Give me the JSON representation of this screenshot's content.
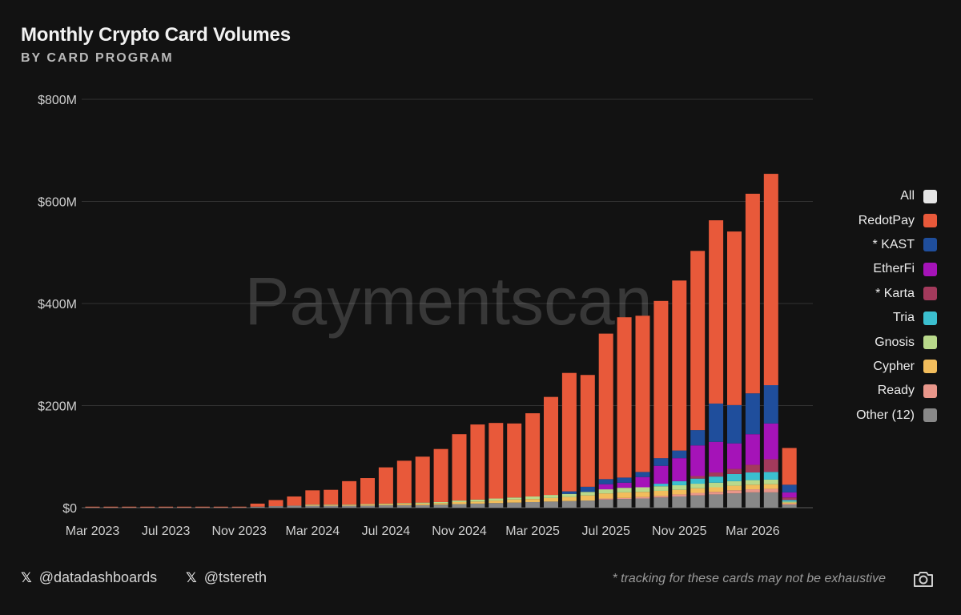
{
  "header": {
    "title": "Monthly Crypto Card Volumes",
    "subtitle": "BY CARD PROGRAM"
  },
  "watermark": "Paymentscan",
  "legend": [
    {
      "label": "All",
      "color": "#e6e6e6"
    },
    {
      "label": "RedotPay",
      "color": "#e8593a"
    },
    {
      "label": "* KAST",
      "color": "#1f4e9c"
    },
    {
      "label": "EtherFi",
      "color": "#a513b8"
    },
    {
      "label": "* Karta",
      "color": "#a33a5c"
    },
    {
      "label": "Tria",
      "color": "#3bbfcf"
    },
    {
      "label": "Gnosis",
      "color": "#b9d98b"
    },
    {
      "label": "Cypher",
      "color": "#f2bd5c"
    },
    {
      "label": "Ready",
      "color": "#e8968a"
    },
    {
      "label": "Other (12)",
      "color": "#888888"
    }
  ],
  "footer": {
    "handle1": "@datadashboards",
    "handle2": "@tstereth",
    "x_icon": "𝕏",
    "footnote": "* tracking for these cards may not be exhaustive",
    "camera_icon": "camera-icon"
  },
  "chart_data": {
    "type": "bar",
    "stacked": true,
    "title": "Monthly Crypto Card Volumes",
    "subtitle": "BY CARD PROGRAM",
    "ylim": [
      0,
      800
    ],
    "y_unit": "$M",
    "y_ticks": [
      {
        "value": 0,
        "label": "$0"
      },
      {
        "value": 200,
        "label": "$200M"
      },
      {
        "value": 400,
        "label": "$400M"
      },
      {
        "value": 600,
        "label": "$600M"
      },
      {
        "value": 800,
        "label": "$800M"
      }
    ],
    "x_tick_labels": [
      {
        "category": "2023-03",
        "label": "Mar 2023"
      },
      {
        "category": "2023-07",
        "label": "Jul 2023"
      },
      {
        "category": "2023-11",
        "label": "Nov 2023"
      },
      {
        "category": "2024-03",
        "label": "Mar 2024"
      },
      {
        "category": "2024-07",
        "label": "Jul 2024"
      },
      {
        "category": "2024-11",
        "label": "Nov 2024"
      },
      {
        "category": "2025-03",
        "label": "Mar 2025"
      },
      {
        "category": "2025-07",
        "label": "Jul 2025"
      },
      {
        "category": "2025-11",
        "label": "Nov 2025"
      },
      {
        "category": "2026-03",
        "label": "Mar 2026"
      }
    ],
    "grid": true,
    "legend_position": "right",
    "categories": [
      "2023-03",
      "2023-04",
      "2023-05",
      "2023-06",
      "2023-07",
      "2023-08",
      "2023-09",
      "2023-10",
      "2023-11",
      "2023-12",
      "2024-01",
      "2024-02",
      "2024-03",
      "2024-04",
      "2024-05",
      "2024-06",
      "2024-07",
      "2024-08",
      "2024-09",
      "2024-10",
      "2024-11",
      "2024-12",
      "2025-01",
      "2025-02",
      "2025-03",
      "2025-04",
      "2025-05",
      "2025-06",
      "2025-07",
      "2025-08",
      "2025-09",
      "2025-10",
      "2025-11",
      "2025-12",
      "2026-01",
      "2026-02",
      "2026-03",
      "2026-04",
      "2026-05"
    ],
    "series": [
      {
        "name": "Other (12)",
        "color": "#888888",
        "values": [
          1,
          1,
          1,
          1,
          1,
          1,
          1,
          1,
          1,
          2,
          3,
          4,
          4,
          4,
          4,
          4,
          5,
          5,
          5,
          6,
          7,
          8,
          9,
          10,
          11,
          12,
          13,
          14,
          16,
          17,
          18,
          20,
          22,
          24,
          26,
          28,
          30,
          30,
          6
        ]
      },
      {
        "name": "Ready",
        "color": "#e8968a",
        "values": [
          0,
          0,
          0,
          0,
          0,
          0,
          0,
          0,
          0,
          0,
          0,
          0,
          0,
          0,
          0,
          0,
          0,
          0,
          0,
          0,
          0,
          0,
          0,
          0,
          0,
          0,
          0,
          0,
          2,
          2,
          3,
          3,
          4,
          5,
          5,
          6,
          6,
          7,
          2
        ]
      },
      {
        "name": "Cypher",
        "color": "#f2bd5c",
        "values": [
          0,
          0,
          0,
          0,
          0,
          0,
          0,
          0,
          0,
          0,
          0,
          0,
          1,
          1,
          1,
          2,
          2,
          3,
          3,
          3,
          4,
          4,
          5,
          6,
          6,
          7,
          8,
          10,
          10,
          11,
          10,
          10,
          9,
          9,
          9,
          9,
          9,
          9,
          2
        ]
      },
      {
        "name": "Gnosis",
        "color": "#b9d98b",
        "values": [
          0,
          0,
          0,
          0,
          0,
          0,
          0,
          0,
          0,
          0,
          0,
          0,
          1,
          1,
          1,
          1,
          1,
          1,
          2,
          2,
          3,
          4,
          4,
          4,
          5,
          6,
          6,
          7,
          8,
          9,
          9,
          9,
          9,
          9,
          9,
          9,
          9,
          9,
          2
        ]
      },
      {
        "name": "Tria",
        "color": "#3bbfcf",
        "values": [
          0,
          0,
          0,
          0,
          0,
          0,
          0,
          0,
          0,
          0,
          0,
          0,
          0,
          0,
          0,
          0,
          0,
          0,
          0,
          0,
          0,
          0,
          0,
          0,
          0,
          0,
          0,
          0,
          0,
          0,
          0,
          5,
          8,
          10,
          12,
          14,
          15,
          15,
          3
        ]
      },
      {
        "name": "* Karta",
        "color": "#a33a5c",
        "values": [
          0,
          0,
          0,
          0,
          0,
          0,
          0,
          0,
          0,
          0,
          0,
          0,
          0,
          0,
          0,
          0,
          0,
          0,
          0,
          0,
          0,
          0,
          0,
          0,
          0,
          0,
          0,
          0,
          0,
          0,
          0,
          0,
          0,
          5,
          8,
          10,
          15,
          25,
          5
        ]
      },
      {
        "name": "EtherFi",
        "color": "#a513b8",
        "values": [
          0,
          0,
          0,
          0,
          0,
          0,
          0,
          0,
          0,
          0,
          0,
          0,
          0,
          0,
          0,
          0,
          0,
          0,
          0,
          0,
          0,
          0,
          0,
          0,
          0,
          0,
          0,
          0,
          10,
          10,
          20,
          35,
          45,
          60,
          60,
          50,
          60,
          70,
          10
        ]
      },
      {
        "name": "* KAST",
        "color": "#1f4e9c",
        "values": [
          0,
          0,
          0,
          0,
          0,
          0,
          0,
          0,
          0,
          0,
          0,
          0,
          0,
          0,
          0,
          0,
          0,
          0,
          0,
          0,
          0,
          0,
          0,
          0,
          0,
          0,
          5,
          10,
          10,
          10,
          10,
          15,
          15,
          30,
          75,
          75,
          80,
          75,
          15
        ]
      },
      {
        "name": "RedotPay",
        "color": "#e8593a",
        "values": [
          1,
          1,
          1,
          1,
          1,
          1,
          1,
          1,
          1,
          6,
          12,
          18,
          28,
          29,
          46,
          51,
          71,
          83,
          90,
          104,
          130,
          147,
          148,
          145,
          163,
          192,
          232,
          219,
          285,
          314,
          306,
          308,
          333,
          351,
          359,
          340,
          391,
          414,
          72
        ]
      }
    ]
  }
}
